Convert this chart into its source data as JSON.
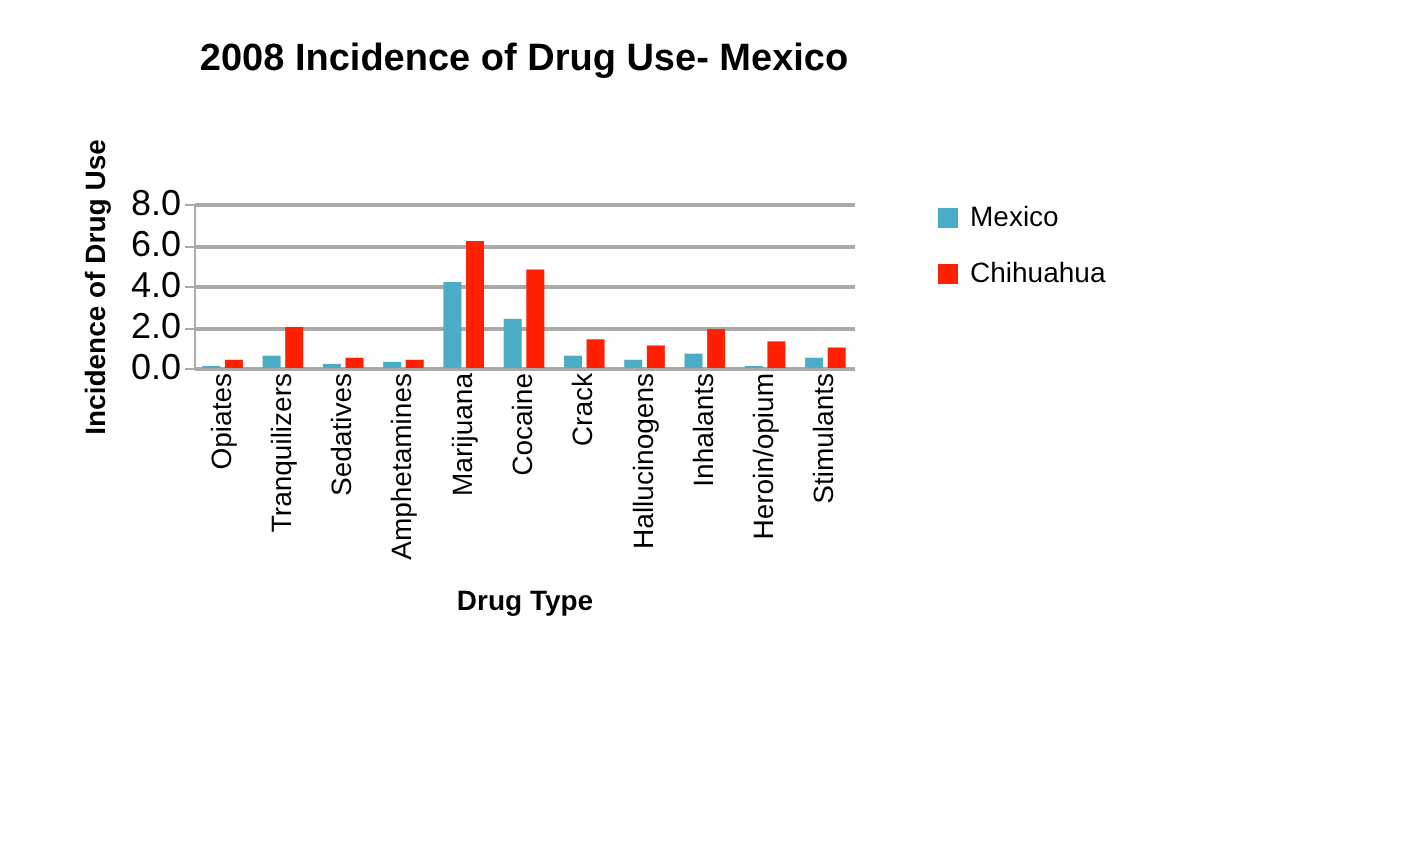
{
  "chart_data": {
    "type": "bar",
    "title": "2008 Incidence of Drug Use- Mexico",
    "xlabel": "Drug Type",
    "ylabel": "Incidence of Drug Use",
    "categories": [
      "Opiates",
      "Tranquilizers",
      "Sedatives",
      "Amphetamines",
      "Marijuana",
      "Cocaine",
      "Crack",
      "Hallucinogens",
      "Inhalants",
      "Heroin/opium",
      "Stimulants"
    ],
    "series": [
      {
        "name": "Mexico",
        "color": "#4bacc6",
        "values": [
          0.1,
          0.6,
          0.2,
          0.3,
          4.2,
          2.4,
          0.6,
          0.4,
          0.7,
          0.1,
          0.5
        ]
      },
      {
        "name": "Chihuahua",
        "color": "#ff2000",
        "values": [
          0.4,
          2.0,
          0.5,
          0.4,
          6.2,
          4.8,
          1.4,
          1.1,
          1.9,
          1.3,
          1.0
        ]
      }
    ],
    "ylim": [
      0,
      8
    ],
    "yticks": [
      {
        "value": 0,
        "label": "0.0"
      },
      {
        "value": 2,
        "label": "2.0"
      },
      {
        "value": 4,
        "label": "4.0"
      },
      {
        "value": 6,
        "label": "6.0"
      },
      {
        "value": 8,
        "label": "8.0"
      }
    ],
    "grid": "y",
    "legend": "right"
  }
}
